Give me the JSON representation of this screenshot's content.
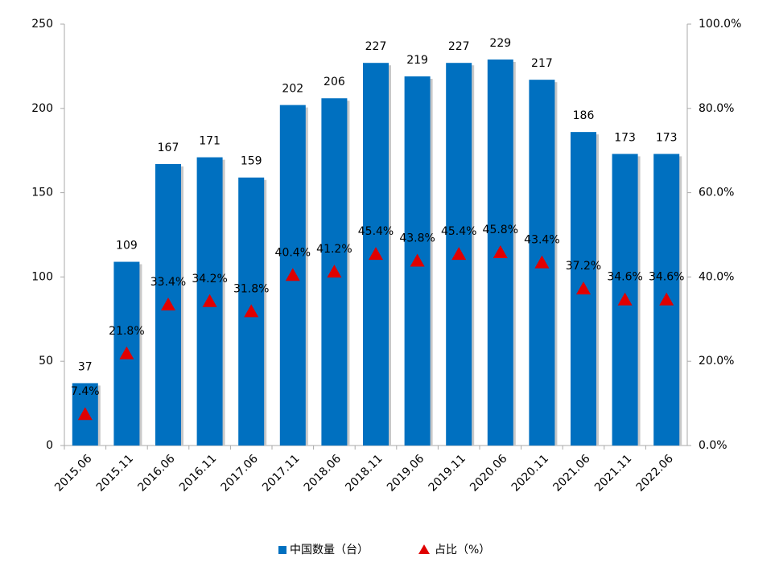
{
  "chart_data": {
    "type": "bar_triangle",
    "categories": [
      "2015.06",
      "2015.11",
      "2016.06",
      "2016.11",
      "2017.06",
      "2017.11",
      "2018.06",
      "2018.11",
      "2019.06",
      "2019.11",
      "2020.06",
      "2020.11",
      "2021.06",
      "2021.11",
      "2022.06"
    ],
    "series": [
      {
        "name": "中国数量（台）",
        "color": "#0070c0",
        "values": [
          37,
          109,
          167,
          171,
          159,
          202,
          206,
          227,
          219,
          227,
          229,
          217,
          186,
          173,
          173
        ]
      },
      {
        "name": "占比（%）",
        "color": "#e00000",
        "axis": "y2",
        "values": [
          7.4,
          21.8,
          33.4,
          34.2,
          31.8,
          40.4,
          41.2,
          45.4,
          43.8,
          45.4,
          45.8,
          43.4,
          37.2,
          34.6,
          34.6
        ],
        "value_labels": [
          "7.4%",
          "21.8%",
          "33.4%",
          "34.2%",
          "31.8%",
          "40.4%",
          "41.2%",
          "45.4%",
          "43.8%",
          "45.4%",
          "45.8%",
          "43.4%",
          "37.2%",
          "34.6%",
          "34.6%"
        ]
      }
    ],
    "ylim": [
      0,
      250
    ],
    "yticks": [
      0,
      50,
      100,
      150,
      200,
      250
    ],
    "y2lim": [
      0,
      100
    ],
    "y2ticks": [
      {
        "value": 0,
        "label": "0.0%"
      },
      {
        "value": 20,
        "label": "20.0%"
      },
      {
        "value": 40,
        "label": "40.0%"
      },
      {
        "value": 60,
        "label": "60.0%"
      },
      {
        "value": 80,
        "label": "80.0%"
      },
      {
        "value": 100,
        "label": "100.0%"
      }
    ],
    "grid": false
  }
}
